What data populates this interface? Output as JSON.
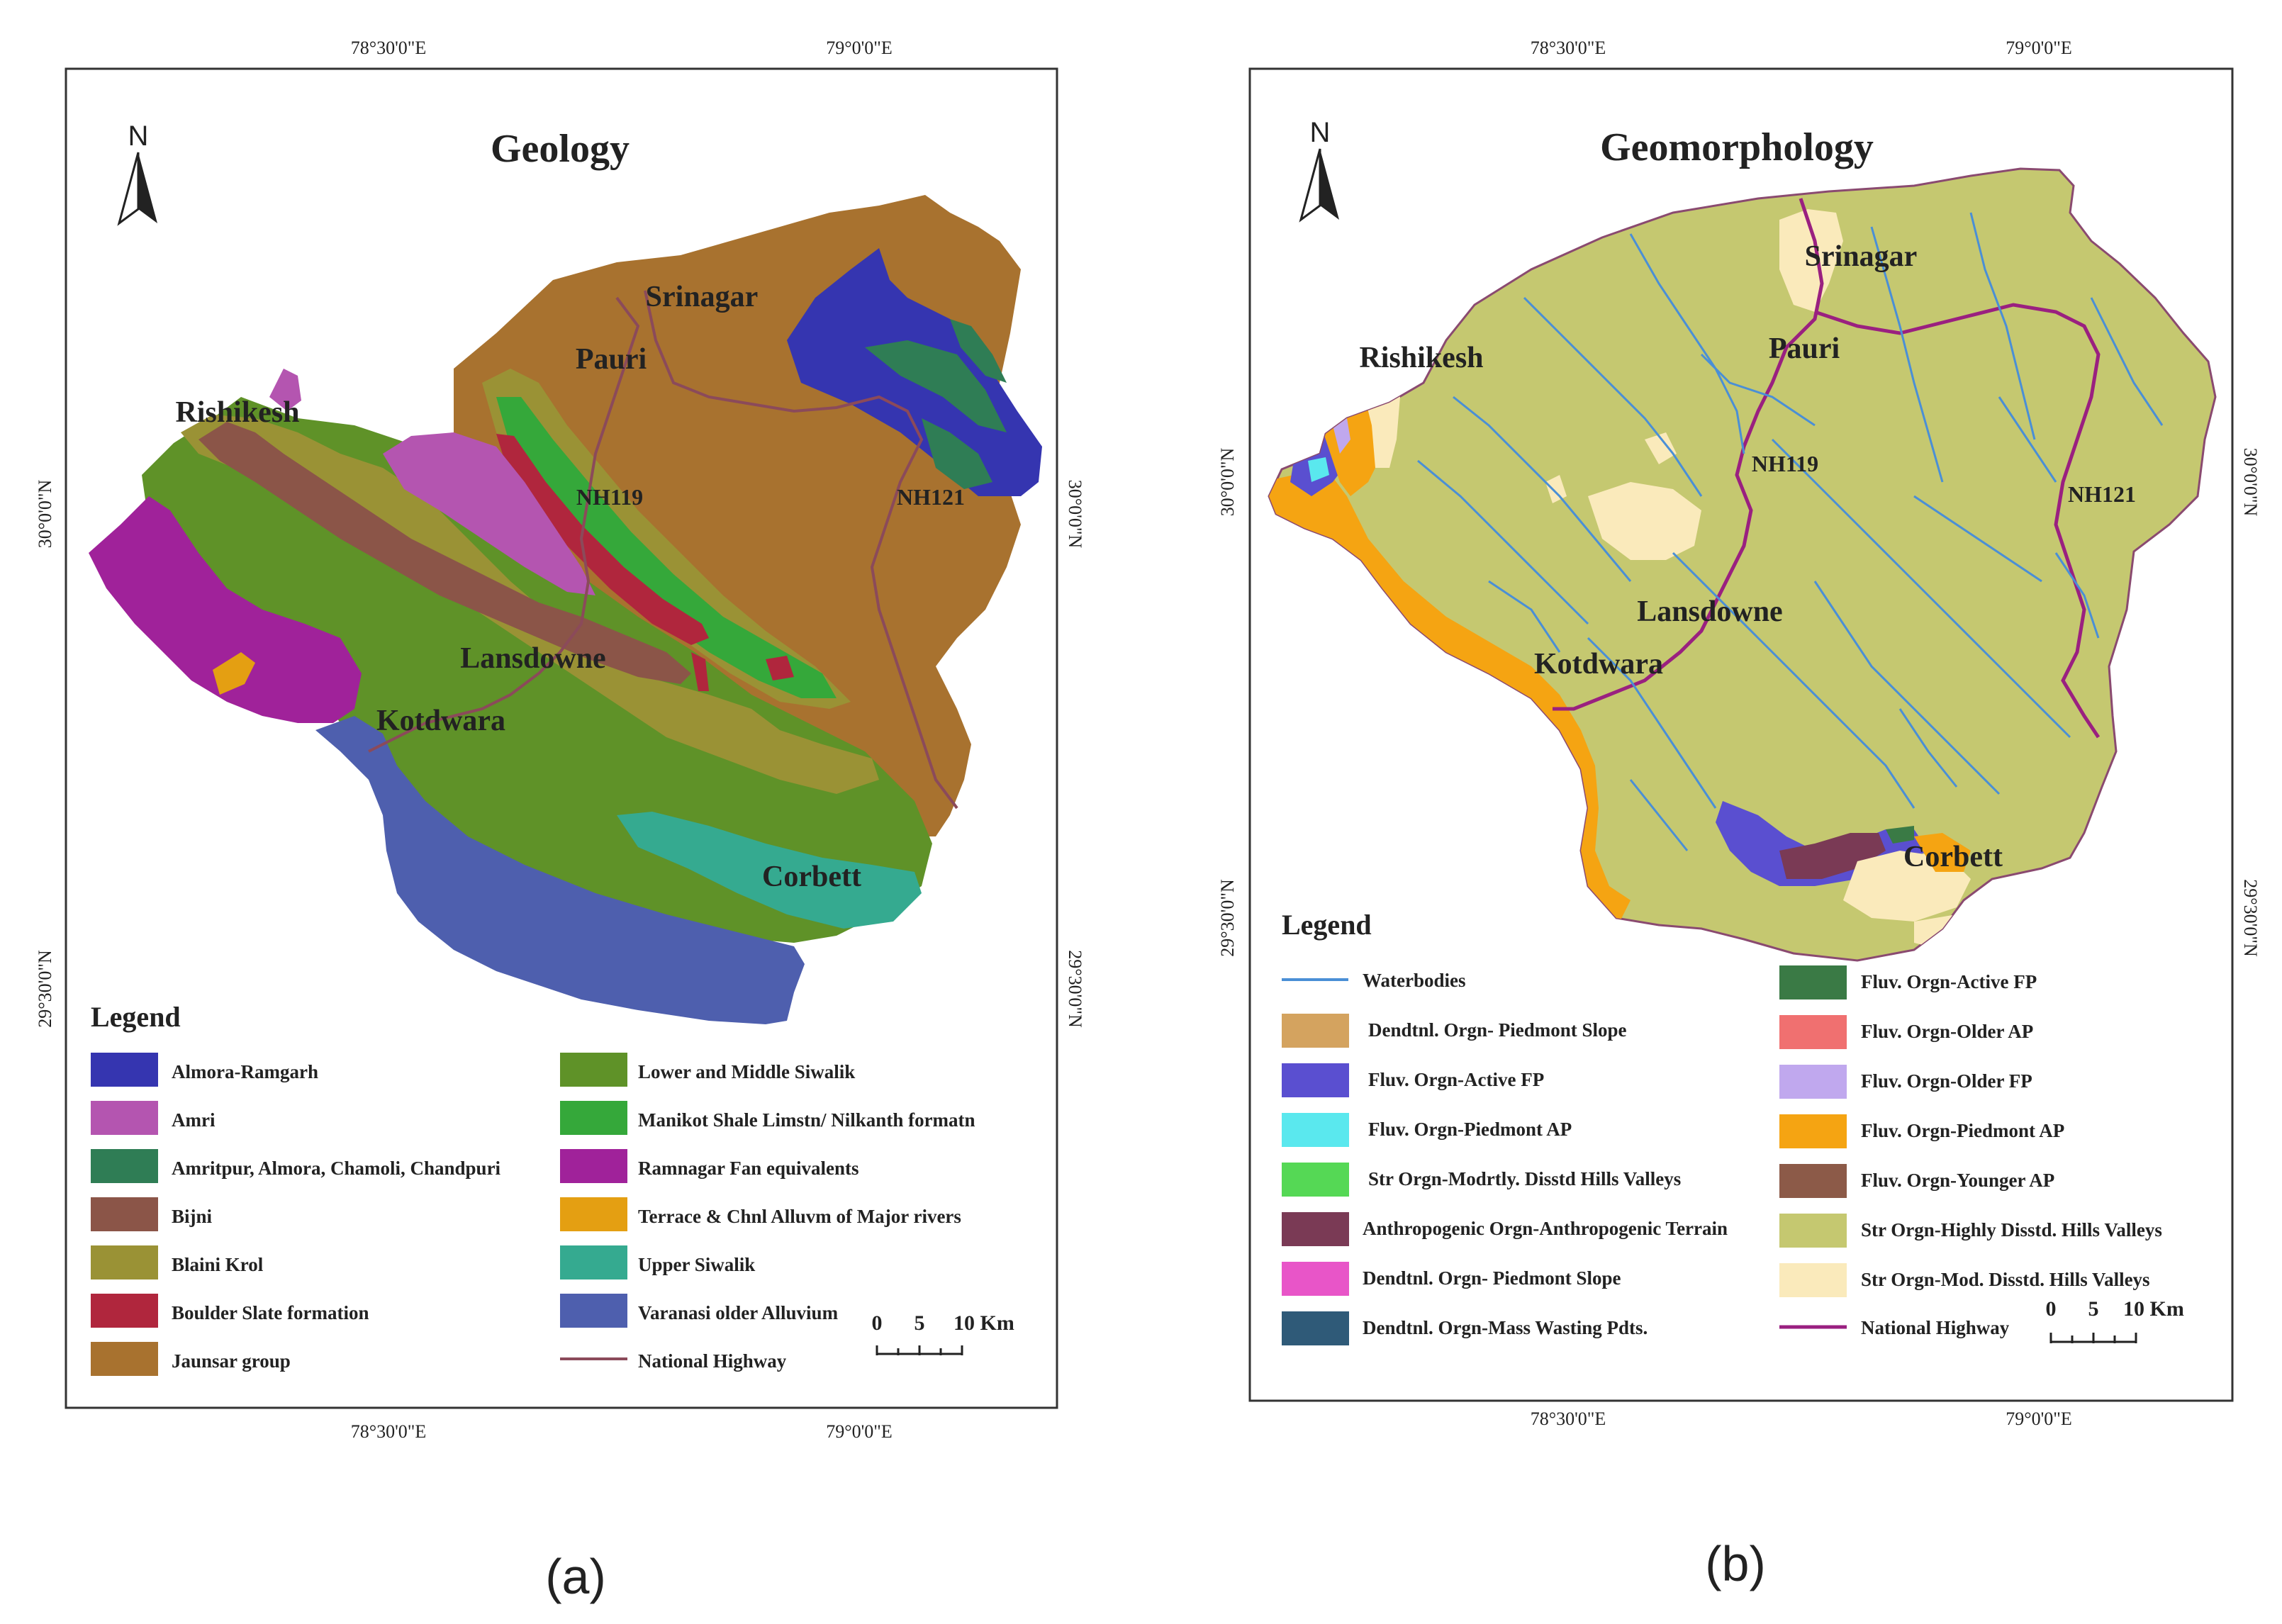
{
  "panel_a": {
    "title": "Geology",
    "caption": "(a)",
    "north_label": "N",
    "coords": {
      "top_left": "78°30'0\"E",
      "top_right": "79°0'0\"E",
      "bottom_left": "78°30'0\"E",
      "bottom_right": "79°0'0\"E",
      "left_upper": "30°0'0\"N",
      "left_lower": "29°30'0\"N",
      "right_upper": "30°0'0\"N",
      "right_lower": "29°30'0\"N"
    },
    "places": {
      "srinagar": "Srinagar",
      "pauri": "Pauri",
      "rishikesh": "Rishikesh",
      "lansdowne": "Lansdowne",
      "kotdwara": "Kotdwara",
      "corbett": "Corbett",
      "nh119": "NH119",
      "nh121": "NH121"
    },
    "legend_title": "Legend",
    "legend": [
      {
        "label": "Almora-Ramgarh",
        "color": "#3535b0"
      },
      {
        "label": "Amri",
        "color": "#b455b0"
      },
      {
        "label": "Amritpur, Almora, Chamoli, Chandpuri",
        "color": "#2f7d55"
      },
      {
        "label": "Bijni",
        "color": "#8b5548"
      },
      {
        "label": "Blaini Krol",
        "color": "#9a9235"
      },
      {
        "label": "Boulder Slate formation",
        "color": "#b0263d"
      },
      {
        "label": "Jaunsar group",
        "color": "#a8722f"
      },
      {
        "label": "Lower and Middle Siwalik",
        "color": "#5f9228"
      },
      {
        "label": "Manikot Shale Limstn/ Nilkanth formatn",
        "color": "#35a83a"
      },
      {
        "label": "Ramnagar Fan equivalents",
        "color": "#a0229a"
      },
      {
        "label": "Terrace & Chnl Alluvm of Major rivers",
        "color": "#e49f12"
      },
      {
        "label": "Upper Siwalik",
        "color": "#35aa90"
      },
      {
        "label": "Varanasi older Alluvium",
        "color": "#4e5fae"
      },
      {
        "label": "National Highway",
        "color": "#8b4a5a",
        "line": true
      }
    ],
    "scale": {
      "t0": "0",
      "t5": "5",
      "t10": "10 Km"
    }
  },
  "panel_b": {
    "title": "Geomorphology",
    "caption": "(b)",
    "north_label": "N",
    "coords": {
      "top_left": "78°30'0\"E",
      "top_right": "79°0'0\"E",
      "bottom_left": "78°30'0\"E",
      "bottom_right": "79°0'0\"E",
      "left_upper": "30°0'0\"N",
      "left_lower": "29°30'0\"N",
      "right_upper": "30°0'0\"N",
      "right_lower": "29°30'0\"N"
    },
    "places": {
      "srinagar": "Srinagar",
      "pauri": "Pauri",
      "rishikesh": "Rishikesh",
      "lansdowne": "Lansdowne",
      "kotdwara": "Kotdwara",
      "corbett": "Corbett",
      "nh119": "NH119",
      "nh121": "NH121"
    },
    "legend_title": "Legend",
    "legend": [
      {
        "label": "Waterbodies",
        "color": "#4a8fd6",
        "line": true
      },
      {
        "label": "Dendtnl. Orgn- Piedmont Slope",
        "color": "#d4a35f"
      },
      {
        "label": "Fluv. Orgn-Active FP",
        "color": "#5a4fd0"
      },
      {
        "label": "Fluv. Orgn-Piedmont AP",
        "color": "#5ae8ee"
      },
      {
        "label": "Str Orgn-Modrtly. Disstd Hills Valleys",
        "color": "#55d855"
      },
      {
        "label": "Anthropogenic Orgn-Anthropogenic Terrain",
        "color": "#7a3a55"
      },
      {
        "label": "Dendtnl. Orgn- Piedmont Slope",
        "color": "#e855c8"
      },
      {
        "label": "Dendtnl. Orgn-Mass Wasting Pdts.",
        "color": "#2f5a78"
      },
      {
        "label": "Fluv. Orgn-Active FP",
        "color": "#3a7a45"
      },
      {
        "label": "Fluv. Orgn-Older AP",
        "color": "#f07070"
      },
      {
        "label": "Fluv. Orgn-Older FP",
        "color": "#c0a8ee"
      },
      {
        "label": "Fluv. Orgn-Piedmont AP",
        "color": "#f5a412"
      },
      {
        "label": "Fluv. Orgn-Younger AP",
        "color": "#8c5a48"
      },
      {
        "label": "Str Orgn-Highly Disstd. Hills Valleys",
        "color": "#c5c870"
      },
      {
        "label": "Str Orgn-Mod. Disstd. Hills Valleys",
        "color": "#faeabb"
      },
      {
        "label": "National Highway",
        "color": "#9a2080",
        "line": true
      }
    ],
    "scale": {
      "t0": "0",
      "t5": "5",
      "t10": "10 Km"
    }
  }
}
